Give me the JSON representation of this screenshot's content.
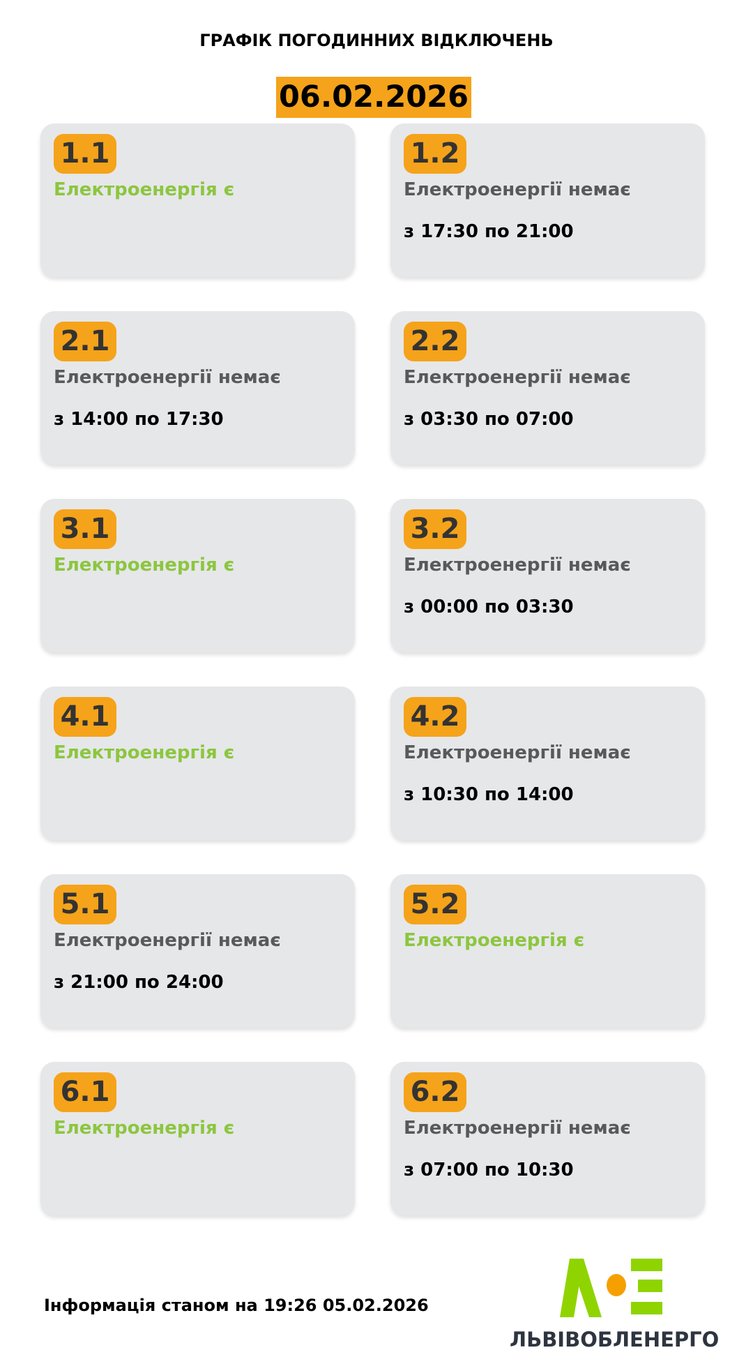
{
  "header": {
    "title": "ГРАФІК ПОГОДИННИХ ВІДКЛЮЧЕНЬ",
    "date": "06.02.2026"
  },
  "colors": {
    "accent": "#f5a31a",
    "power_on": "#8cc63f",
    "power_off": "#58595b",
    "card_bg": "#e6e7e9"
  },
  "groups": [
    {
      "id": "1.1",
      "status": "Електроенергія є",
      "on": true,
      "time": ""
    },
    {
      "id": "1.2",
      "status": "Електроенергії немає",
      "on": false,
      "time": "з 17:30 по 21:00"
    },
    {
      "id": "2.1",
      "status": "Електроенергії немає",
      "on": false,
      "time": "з 14:00 по 17:30"
    },
    {
      "id": "2.2",
      "status": "Електроенергії немає",
      "on": false,
      "time": "з 03:30 по 07:00"
    },
    {
      "id": "3.1",
      "status": "Електроенергія є",
      "on": true,
      "time": ""
    },
    {
      "id": "3.2",
      "status": "Електроенергії немає",
      "on": false,
      "time": "з 00:00 по 03:30"
    },
    {
      "id": "4.1",
      "status": "Електроенергія є",
      "on": true,
      "time": ""
    },
    {
      "id": "4.2",
      "status": "Електроенергії немає",
      "on": false,
      "time": "з 10:30 по 14:00"
    },
    {
      "id": "5.1",
      "status": "Електроенергії немає",
      "on": false,
      "time": "з 21:00 по 24:00"
    },
    {
      "id": "5.2",
      "status": "Електроенергія є",
      "on": true,
      "time": ""
    },
    {
      "id": "6.1",
      "status": "Електроенергія є",
      "on": true,
      "time": ""
    },
    {
      "id": "6.2",
      "status": "Електроенергії немає",
      "on": false,
      "time": "з 07:00 по 10:30"
    }
  ],
  "footer": {
    "info": "Інформація станом на 19:26 05.02.2026",
    "brand": "ЛЬВІВОБЛЕНЕРГО",
    "logo_text": "ЛОЕ"
  }
}
